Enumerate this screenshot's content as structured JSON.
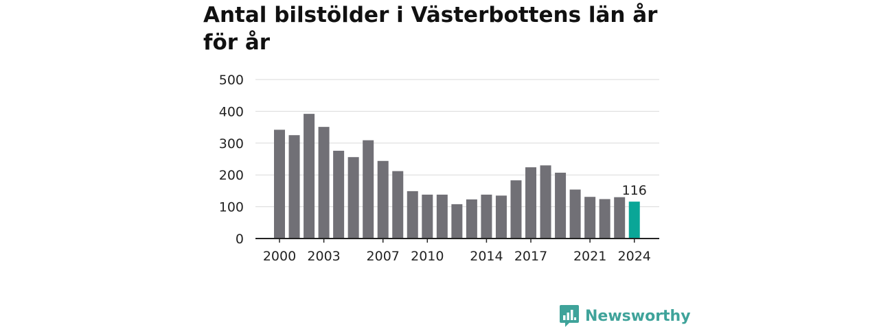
{
  "title": "Antal bilstölder i Västerbottens län år för år",
  "brand": {
    "name": "Newsworthy",
    "logo_icon": "bar-chart-speech-bubble-icon",
    "color": "#3fa39a"
  },
  "colors": {
    "bar": "#717076",
    "highlight": "#0aa697",
    "grid": "#d9d9d9",
    "axis": "#222222",
    "text": "#222222"
  },
  "chart_data": {
    "type": "bar",
    "title": "Antal bilstölder i Västerbottens län år för år",
    "xlabel": "",
    "ylabel": "",
    "ylim": [
      0,
      500
    ],
    "yticks": [
      0,
      100,
      200,
      300,
      400,
      500
    ],
    "grid": true,
    "categories": [
      "2000",
      "2001",
      "2002",
      "2003",
      "2004",
      "2005",
      "2006",
      "2007",
      "2008",
      "2009",
      "2010",
      "2011",
      "2012",
      "2013",
      "2014",
      "2015",
      "2016",
      "2017",
      "2018",
      "2019",
      "2020",
      "2021",
      "2022",
      "2023",
      "2024"
    ],
    "x_tick_labels": [
      "2000",
      "2003",
      "2007",
      "2010",
      "2014",
      "2017",
      "2021",
      "2024"
    ],
    "values": [
      342,
      325,
      392,
      351,
      276,
      256,
      309,
      244,
      212,
      149,
      138,
      138,
      108,
      123,
      138,
      135,
      183,
      224,
      230,
      207,
      154,
      131,
      124,
      130,
      116
    ],
    "highlight": {
      "category": "2024",
      "label": "116"
    }
  }
}
